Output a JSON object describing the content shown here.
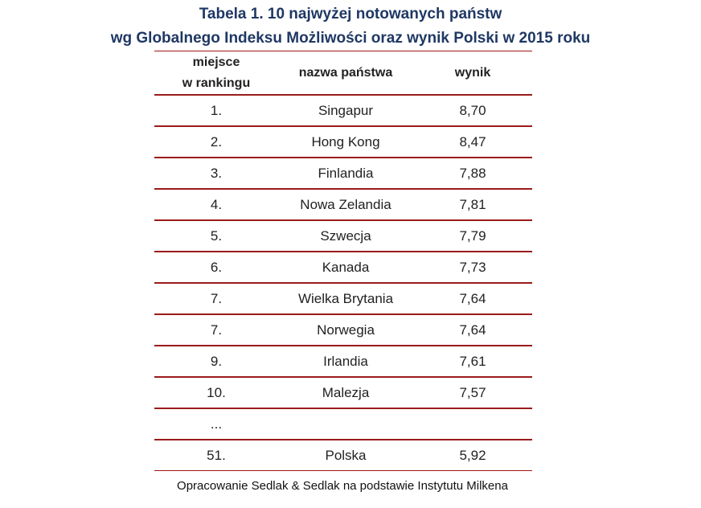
{
  "title": {
    "line1": "Tabela 1. 10 najwyżej notowanych państw",
    "line2": "wg Globalnego Indeksu Możliwości oraz wynik Polski w 2015 roku"
  },
  "table": {
    "headers": {
      "rank_line1": "miejsce",
      "rank_line2": "w rankingu",
      "country": "nazwa państwa",
      "score": "wynik"
    },
    "rows": [
      {
        "rank": "1.",
        "country": "Singapur",
        "score": "8,70"
      },
      {
        "rank": "2.",
        "country": "Hong Kong",
        "score": "8,47"
      },
      {
        "rank": "3.",
        "country": "Finlandia",
        "score": "7,88"
      },
      {
        "rank": "4.",
        "country": "Nowa Zelandia",
        "score": "7,81"
      },
      {
        "rank": "5.",
        "country": "Szwecja",
        "score": "7,79"
      },
      {
        "rank": "6.",
        "country": "Kanada",
        "score": "7,73"
      },
      {
        "rank": "7.",
        "country": "Wielka Brytania",
        "score": "7,64"
      },
      {
        "rank": "7.",
        "country": "Norwegia",
        "score": "7,64"
      },
      {
        "rank": "9.",
        "country": "Irlandia",
        "score": "7,61"
      },
      {
        "rank": "10.",
        "country": "Malezja",
        "score": "7,57"
      },
      {
        "rank": "...",
        "country": "",
        "score": ""
      },
      {
        "rank": "51.",
        "country": "Polska",
        "score": "5,92"
      }
    ]
  },
  "source": "Opracowanie Sedlak & Sedlak na podstawie Instytutu Milkena",
  "colors": {
    "title": "#1f3864",
    "rules": "#9b1b1b"
  }
}
